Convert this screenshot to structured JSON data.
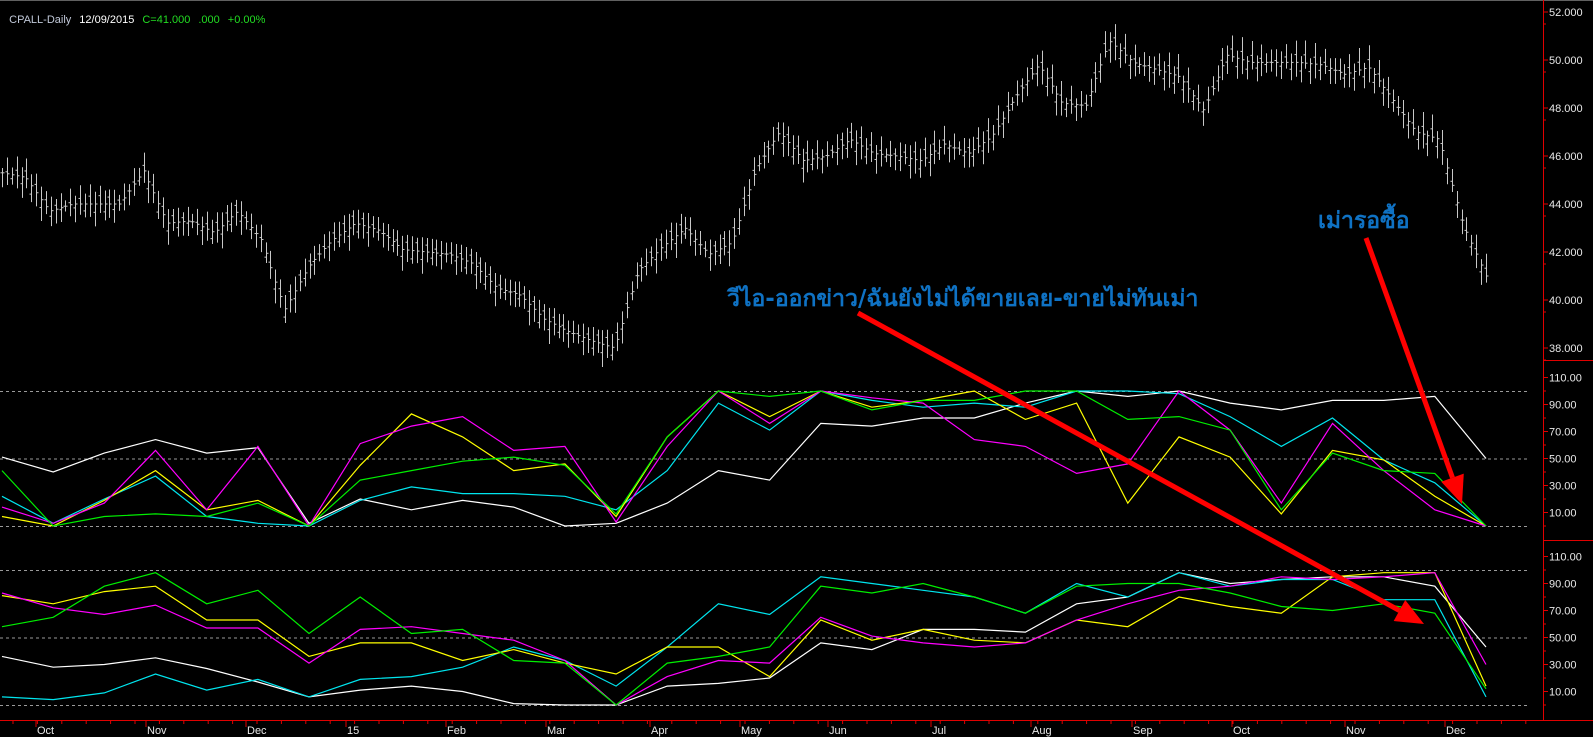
{
  "header": {
    "symbol": "CPALL-Daily",
    "date": "12/09/2015",
    "close": "C=41.000",
    "change": ".000",
    "change_pct": "+0.00%"
  },
  "annotations": {
    "main": "วีไอ-ออกข่าว/ฉันยังไม่ได้ขายเลย-ขายไม่ทันเม่า",
    "right": "เม่ารอซื้อ"
  },
  "colors": {
    "background": "#000000",
    "bars": "#c8c8c8",
    "axis": "#e00000",
    "annotation_text": "#0f72c4",
    "arrow": "#ff0000",
    "grid": "#9a9a9a"
  },
  "x_axis": {
    "labels": [
      "Oct",
      "Nov",
      "Dec",
      "15",
      "Feb",
      "Mar",
      "Apr",
      "May",
      "Jun",
      "Jul",
      "Aug",
      "Sep",
      "Oct",
      "Nov",
      "Dec"
    ]
  },
  "chart_data": [
    {
      "type": "ohlc-bar",
      "ylim": [
        37.5,
        52.5
      ],
      "yticks": [
        "52.000",
        "50.000",
        "48.000",
        "46.000",
        "44.000",
        "42.000",
        "40.000",
        "38.000"
      ],
      "last_close": 41.0,
      "weekly_close": [
        45.3,
        45.1,
        43.7,
        44.0,
        44.0,
        44.0,
        45.4,
        43.2,
        43.3,
        42.8,
        43.7,
        42.5,
        39.6,
        41.4,
        42.5,
        43.2,
        42.9,
        42.1,
        42.0,
        41.9,
        41.5,
        40.5,
        40.2,
        39.2,
        38.7,
        38.3,
        38.0,
        41.2,
        42.2,
        43.0,
        41.9,
        42.4,
        45.5,
        47.0,
        45.8,
        46.0,
        46.7,
        46.1,
        46.0,
        45.8,
        46.5,
        46.1,
        46.8,
        48.4,
        49.8,
        48.2,
        48.1,
        50.8,
        49.9,
        49.6,
        49.3,
        47.9,
        50.2,
        49.9,
        49.9,
        49.9,
        49.8,
        49.4,
        49.7,
        48.4,
        47.0,
        46.7,
        43.2,
        41.0
      ]
    },
    {
      "type": "line",
      "ylim": [
        0,
        100
      ],
      "reference_lines": [
        0,
        50,
        100
      ],
      "yticks": [
        "110.00",
        "90.00",
        "70.00",
        "50.00",
        "30.00",
        "10.00"
      ],
      "series": [
        {
          "color": "#ffffff",
          "values": [
            51,
            40,
            54,
            64,
            54,
            58,
            2,
            20,
            12,
            19,
            14,
            0,
            2,
            17,
            41,
            34,
            76,
            74,
            80,
            80,
            91,
            100,
            96,
            100,
            91,
            86,
            93,
            93,
            96,
            50
          ]
        },
        {
          "color": "#00e5ee",
          "values": [
            22,
            2,
            20,
            37,
            7,
            2,
            0,
            19,
            29,
            24,
            24,
            22,
            12,
            41,
            91,
            71,
            100,
            93,
            88,
            91,
            88,
            100,
            100,
            98,
            81,
            59,
            80,
            49,
            32,
            0
          ]
        },
        {
          "color": "#ffff00",
          "values": [
            7,
            0,
            19,
            41,
            12,
            19,
            0,
            45,
            83,
            66,
            41,
            46,
            7,
            66,
            100,
            81,
            100,
            88,
            93,
            100,
            79,
            91,
            17,
            66,
            51,
            9,
            56,
            49,
            22,
            0
          ]
        },
        {
          "color": "#ff00ff",
          "values": [
            14,
            2,
            17,
            56,
            12,
            59,
            0,
            61,
            74,
            81,
            56,
            59,
            3,
            59,
            100,
            76,
            100,
            95,
            91,
            64,
            59,
            39,
            46,
            100,
            71,
            17,
            76,
            41,
            12,
            0
          ]
        },
        {
          "color": "#00ee00",
          "values": [
            41,
            0,
            7,
            9,
            7,
            17,
            0,
            34,
            41,
            48,
            51,
            45,
            9,
            66,
            100,
            96,
            100,
            86,
            93,
            93,
            100,
            100,
            79,
            81,
            71,
            12,
            54,
            41,
            39,
            0
          ]
        }
      ]
    },
    {
      "type": "line",
      "ylim": [
        0,
        100
      ],
      "reference_lines": [
        0,
        50,
        100
      ],
      "yticks": [
        "110.00",
        "90.00",
        "70.00",
        "50.00",
        "30.00",
        "10.00"
      ],
      "series": [
        {
          "color": "#ffffff",
          "values": [
            36,
            28,
            30,
            35,
            27,
            17,
            6,
            11,
            14,
            10,
            1,
            0,
            0,
            14,
            16,
            20,
            46,
            41,
            56,
            56,
            54,
            75,
            80,
            98,
            90,
            93,
            95,
            95,
            88,
            43
          ]
        },
        {
          "color": "#00e5ee",
          "values": [
            6,
            4,
            9,
            23,
            11,
            19,
            6,
            19,
            21,
            28,
            43,
            33,
            14,
            43,
            75,
            67,
            95,
            90,
            85,
            80,
            68,
            90,
            80,
            98,
            88,
            93,
            93,
            78,
            78,
            6
          ]
        },
        {
          "color": "#ffff00",
          "values": [
            81,
            75,
            84,
            88,
            63,
            63,
            36,
            46,
            46,
            33,
            41,
            31,
            23,
            43,
            43,
            21,
            63,
            48,
            56,
            48,
            46,
            63,
            58,
            80,
            73,
            68,
            95,
            98,
            98,
            14
          ]
        },
        {
          "color": "#ff00ff",
          "values": [
            83,
            72,
            67,
            74,
            57,
            57,
            31,
            56,
            58,
            53,
            48,
            33,
            0,
            21,
            33,
            31,
            65,
            51,
            46,
            43,
            46,
            63,
            75,
            85,
            88,
            95,
            93,
            95,
            98,
            30
          ]
        },
        {
          "color": "#00ee00",
          "values": [
            58,
            65,
            88,
            98,
            75,
            85,
            53,
            80,
            53,
            56,
            33,
            31,
            0,
            31,
            36,
            43,
            88,
            83,
            90,
            80,
            68,
            88,
            90,
            90,
            83,
            73,
            70,
            75,
            68,
            12
          ]
        }
      ]
    }
  ]
}
